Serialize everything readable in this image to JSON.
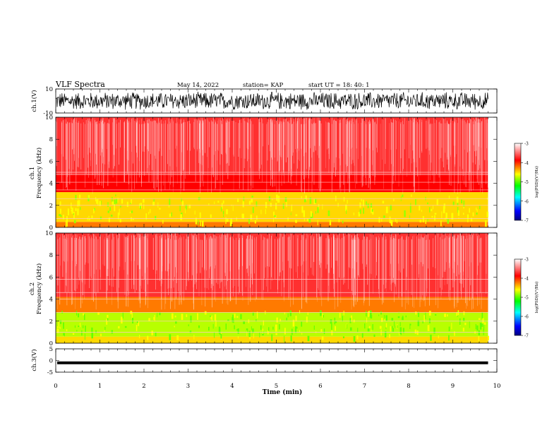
{
  "header": {
    "title": "VLF Spectra",
    "date": "May 14, 2022",
    "station": "station= KAP",
    "start": "start  UT  =   18: 40: 1"
  },
  "colors": {
    "background": "#ffffff",
    "axis": "#000000",
    "waveform": "#000000",
    "colormap": [
      "#000080",
      "#0000ff",
      "#00ffff",
      "#00ff00",
      "#ffff00",
      "#ff0000",
      "#ffffff"
    ]
  },
  "chart_data": [
    {
      "type": "line",
      "panel": "ch1-waveform",
      "ylabel": "ch.1(V)",
      "ylim": [
        -10,
        10
      ],
      "yticks": [
        "10",
        "-10"
      ],
      "xlim": [
        0,
        10
      ],
      "signal": "continuous noise-like trace spanning roughly -8 V to +8 V"
    },
    {
      "type": "heatmap",
      "panel": "ch1-spectrogram",
      "ylabel": "ch.1\nFrequency  (kHz)",
      "ylim": [
        0,
        10
      ],
      "yticks": [
        "0",
        "2",
        "4",
        "6",
        "8",
        "10"
      ],
      "xlim": [
        0,
        10
      ],
      "colorbar": {
        "label": "log(PSD)(V²/Hz)",
        "range": [
          -7,
          -3
        ],
        "ticks": [
          "-3",
          "-4",
          "-5",
          "-6",
          "-7"
        ]
      },
      "bands": [
        {
          "freq_khz": [
            0.0,
            0.5
          ],
          "level": -4.3
        },
        {
          "freq_khz": [
            0.5,
            3.2
          ],
          "level": -4.6
        },
        {
          "freq_khz": [
            3.2,
            4.8
          ],
          "level": -4.0
        },
        {
          "freq_khz": [
            4.8,
            10.0
          ],
          "level": -3.4
        }
      ],
      "line_freqs_khz": [
        0.8,
        2.0,
        2.6,
        3.4,
        4.1,
        4.8,
        5.0
      ]
    },
    {
      "type": "heatmap",
      "panel": "ch2-spectrogram",
      "ylabel": "ch.2\nFrequency  (kHz)",
      "ylim": [
        0,
        10
      ],
      "yticks": [
        "0",
        "2",
        "4",
        "6",
        "8",
        "10"
      ],
      "xlim": [
        0,
        10
      ],
      "colorbar": {
        "label": "log(PSD)(V²/Hz)",
        "range": [
          -7,
          -3
        ],
        "ticks": [
          "-3",
          "-4",
          "-5",
          "-6",
          "-7"
        ]
      },
      "bands": [
        {
          "freq_khz": [
            0.0,
            0.6
          ],
          "level": -4.6
        },
        {
          "freq_khz": [
            0.6,
            2.8
          ],
          "level": -5.0
        },
        {
          "freq_khz": [
            2.8,
            4.2
          ],
          "level": -4.2
        },
        {
          "freq_khz": [
            4.2,
            10.0
          ],
          "level": -3.4
        }
      ],
      "line_freqs_khz": [
        1.0,
        2.0,
        2.8,
        4.0,
        4.6,
        5.8
      ]
    },
    {
      "type": "line",
      "panel": "ch3-waveform",
      "ylabel": "ch.3(V)",
      "ylim": [
        -5,
        5
      ],
      "yticks": [
        "5",
        "0",
        "-5"
      ],
      "xlim": [
        0,
        10
      ],
      "signal": "narrow band near -1 V from 0 to about 9.8 min"
    }
  ],
  "xaxis": {
    "label": "Time  (min)",
    "ticks": [
      "0",
      "1",
      "2",
      "3",
      "4",
      "5",
      "6",
      "7",
      "8",
      "9",
      "10"
    ],
    "data_end_min": 9.8
  }
}
